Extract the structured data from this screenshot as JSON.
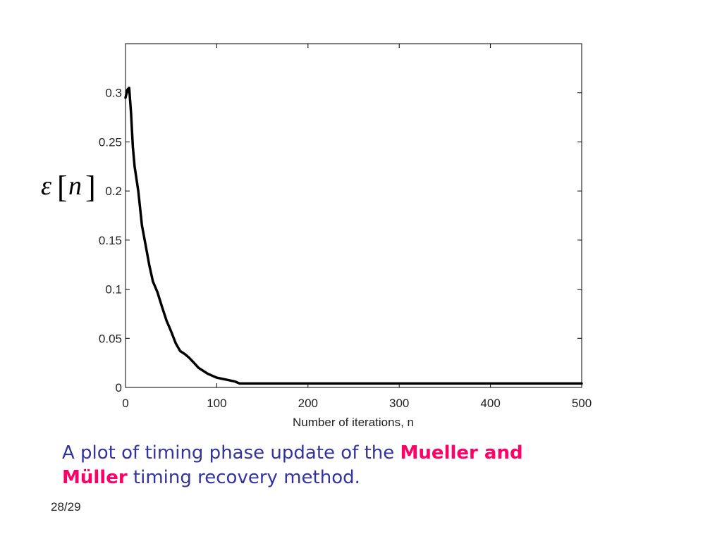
{
  "colors": {
    "curve": "#000000",
    "caption_text": "#3333a0",
    "caption_emphasis": "#ff0066"
  },
  "chart_data": {
    "type": "line",
    "title": "",
    "xlabel": "Number of iterations, n",
    "ylabel": "ε[n]",
    "ylabel_symbol": "ε",
    "ylabel_index": "n",
    "xlim": [
      0,
      500
    ],
    "ylim": [
      0,
      0.35
    ],
    "xticks": [
      0,
      100,
      200,
      300,
      400,
      500
    ],
    "xtick_labels": [
      "0",
      "100",
      "200",
      "300",
      "400",
      "500"
    ],
    "yticks": [
      0,
      0.05,
      0.1,
      0.15,
      0.2,
      0.25,
      0.3
    ],
    "ytick_labels": [
      "0",
      "0.05",
      "0.1",
      "0.15",
      "0.2",
      "0.25",
      "0.3"
    ],
    "grid": false,
    "legend": "none",
    "series": [
      {
        "x": [
          0,
          2,
          4,
          6,
          8,
          10,
          14,
          18,
          22,
          26,
          30,
          35,
          40,
          45,
          50,
          55,
          60,
          65,
          70,
          75,
          80,
          85,
          90,
          95,
          100,
          110,
          120,
          125,
          130,
          150,
          200,
          250,
          300,
          350,
          400,
          450,
          500
        ],
        "values": [
          0.295,
          0.303,
          0.305,
          0.28,
          0.245,
          0.225,
          0.2,
          0.165,
          0.145,
          0.125,
          0.108,
          0.097,
          0.082,
          0.068,
          0.057,
          0.045,
          0.037,
          0.034,
          0.03,
          0.025,
          0.02,
          0.017,
          0.014,
          0.012,
          0.01,
          0.008,
          0.006,
          0.004,
          0.004,
          0.004,
          0.004,
          0.004,
          0.004,
          0.004,
          0.004,
          0.004,
          0.004
        ]
      }
    ]
  },
  "caption": {
    "part1": "A plot of timing phase update of the ",
    "emphasis": "Mueller and Müller",
    "part2": " timing recovery method."
  },
  "page_number": "28/29"
}
